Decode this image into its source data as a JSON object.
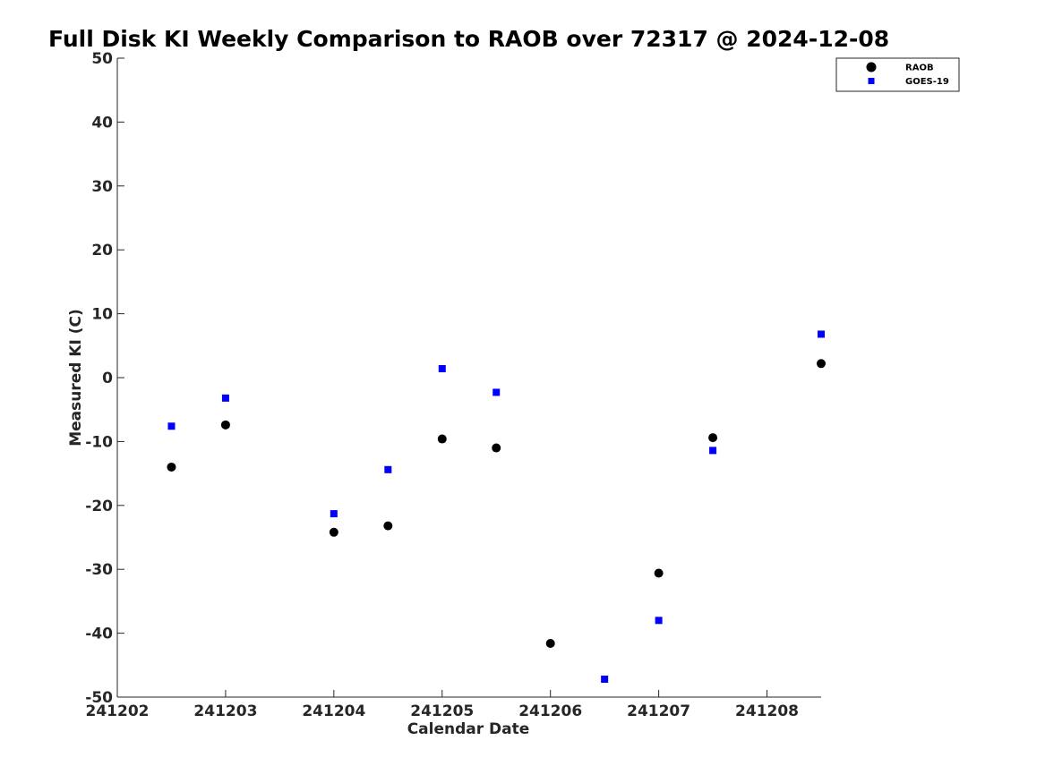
{
  "chart_data": {
    "type": "scatter",
    "title": "Full Disk KI Weekly Comparison to RAOB over 72317 @ 2024-12-08",
    "xlabel": "Calendar Date",
    "ylabel": "Measured KI (C)",
    "xlim": [
      "2024-12-02",
      "2024-12-08 12:00"
    ],
    "ylim": [
      -50,
      50
    ],
    "x_ticks": [
      "241202",
      "241203",
      "241204",
      "241205",
      "241206",
      "241207",
      "241208"
    ],
    "y_ticks": [
      "50",
      "40",
      "30",
      "20",
      "10",
      "0",
      "-10",
      "-20",
      "-30",
      "-40",
      "-50"
    ],
    "grid": false,
    "legend_position": "top-right",
    "series": [
      {
        "name": "RAOB",
        "marker": "circle",
        "color": "#000000",
        "points": [
          {
            "x": "2024-12-02 12:00",
            "y": -14.0
          },
          {
            "x": "2024-12-03 00:00",
            "y": -7.4
          },
          {
            "x": "2024-12-04 00:00",
            "y": -24.2
          },
          {
            "x": "2024-12-04 12:00",
            "y": -23.2
          },
          {
            "x": "2024-12-05 00:00",
            "y": -9.6
          },
          {
            "x": "2024-12-05 12:00",
            "y": -11.0
          },
          {
            "x": "2024-12-06 00:00",
            "y": -41.6
          },
          {
            "x": "2024-12-07 00:00",
            "y": -30.6
          },
          {
            "x": "2024-12-07 12:00",
            "y": -9.4
          },
          {
            "x": "2024-12-08 12:00",
            "y": 2.2
          }
        ]
      },
      {
        "name": "GOES-19",
        "marker": "square",
        "color": "#0000ff",
        "points": [
          {
            "x": "2024-12-02 12:00",
            "y": -7.6
          },
          {
            "x": "2024-12-03 00:00",
            "y": -3.2
          },
          {
            "x": "2024-12-04 00:00",
            "y": -21.3
          },
          {
            "x": "2024-12-04 12:00",
            "y": -14.4
          },
          {
            "x": "2024-12-05 00:00",
            "y": 1.4
          },
          {
            "x": "2024-12-05 12:00",
            "y": -2.3
          },
          {
            "x": "2024-12-06 12:00",
            "y": -47.2
          },
          {
            "x": "2024-12-07 00:00",
            "y": -38.0
          },
          {
            "x": "2024-12-07 12:00",
            "y": -11.4
          },
          {
            "x": "2024-12-08 12:00",
            "y": 6.8
          }
        ]
      }
    ]
  }
}
